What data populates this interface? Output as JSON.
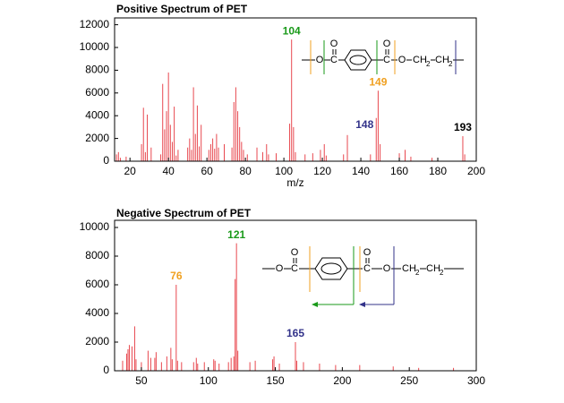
{
  "chart_data": [
    {
      "type": "bar",
      "title": "Positive Spectrum of PET",
      "x_label": "m/z",
      "color": "#e8484f",
      "xlim": [
        12,
        200
      ],
      "xticks": [
        20,
        40,
        60,
        80,
        100,
        120,
        140,
        160,
        180,
        200
      ],
      "ylim": [
        0,
        12600
      ],
      "yticks": [
        0,
        2000,
        4000,
        6000,
        8000,
        10000,
        12000
      ],
      "x": [
        13,
        14,
        15,
        18,
        26,
        27,
        28,
        29,
        31,
        36,
        37,
        38,
        39,
        40,
        41,
        42,
        43,
        44,
        45,
        50,
        51,
        52,
        53,
        54,
        55,
        56,
        57,
        61,
        62,
        63,
        64,
        65,
        66,
        69,
        73,
        74,
        75,
        76,
        77,
        78,
        79,
        81,
        86,
        89,
        91,
        92,
        96,
        103,
        104,
        105,
        106,
        111,
        115,
        119,
        121,
        122,
        131,
        133,
        145,
        148,
        149,
        150,
        160,
        163,
        166,
        177,
        193,
        194
      ],
      "values": [
        600,
        800,
        300,
        400,
        1500,
        4700,
        800,
        4100,
        1200,
        600,
        6800,
        2800,
        4400,
        7800,
        3200,
        1700,
        4800,
        500,
        1000,
        1200,
        2000,
        1000,
        6500,
        2400,
        4900,
        1300,
        3200,
        1000,
        1500,
        2000,
        1100,
        2400,
        1200,
        1500,
        1200,
        5200,
        6500,
        4400,
        3000,
        1700,
        1000,
        600,
        1200,
        800,
        1500,
        600,
        700,
        3300,
        10700,
        3000,
        800,
        600,
        700,
        1000,
        1500,
        500,
        600,
        2300,
        600,
        3800,
        6200,
        1500,
        700,
        1000,
        400,
        300,
        2200,
        600
      ],
      "peak_labels": [
        {
          "label": "104",
          "x": 104,
          "color": "#1a9a1a"
        },
        {
          "label": "149",
          "x": 149,
          "color": "#f0a020"
        },
        {
          "label": "148",
          "x": 148,
          "color": "#33338a"
        },
        {
          "label": "193",
          "x": 193,
          "color": "#000000"
        }
      ],
      "structure": [
        "O",
        "C",
        "O",
        "C",
        "O",
        "O",
        "CH",
        "2",
        "CH",
        "2"
      ]
    },
    {
      "type": "bar",
      "title": "Negative Spectrum of PET",
      "color": "#e8484f",
      "xlim": [
        30,
        300
      ],
      "xticks": [
        50,
        100,
        150,
        200,
        250,
        300
      ],
      "ylim": [
        0,
        10500
      ],
      "yticks": [
        0,
        2000,
        4000,
        6000,
        8000,
        10000
      ],
      "x": [
        36,
        39,
        40,
        41,
        43,
        45,
        46,
        50,
        55,
        57,
        60,
        61,
        65,
        69,
        72,
        73,
        76,
        77,
        80,
        89,
        91,
        92,
        97,
        104,
        105,
        108,
        115,
        117,
        119,
        120,
        121,
        122,
        131,
        135,
        148,
        149,
        153,
        165,
        166,
        171,
        183,
        195,
        213,
        238,
        257,
        283
      ],
      "values": [
        700,
        1200,
        1500,
        1800,
        1700,
        3100,
        800,
        600,
        1400,
        900,
        900,
        1300,
        600,
        1000,
        1600,
        800,
        6000,
        700,
        600,
        600,
        900,
        500,
        600,
        800,
        700,
        500,
        600,
        900,
        1000,
        6400,
        8900,
        1400,
        600,
        700,
        800,
        1000,
        500,
        2000,
        700,
        600,
        500,
        400,
        400,
        300,
        200,
        200
      ],
      "peak_labels": [
        {
          "label": "121",
          "x": 121,
          "color": "#1a9a1a"
        },
        {
          "label": "76",
          "x": 76,
          "color": "#f0a020"
        },
        {
          "label": "165",
          "x": 165,
          "color": "#33338a"
        }
      ],
      "structure": [
        "O",
        "C",
        "O",
        "C",
        "O",
        "O",
        "CH",
        "2",
        "CH",
        "2"
      ]
    }
  ]
}
